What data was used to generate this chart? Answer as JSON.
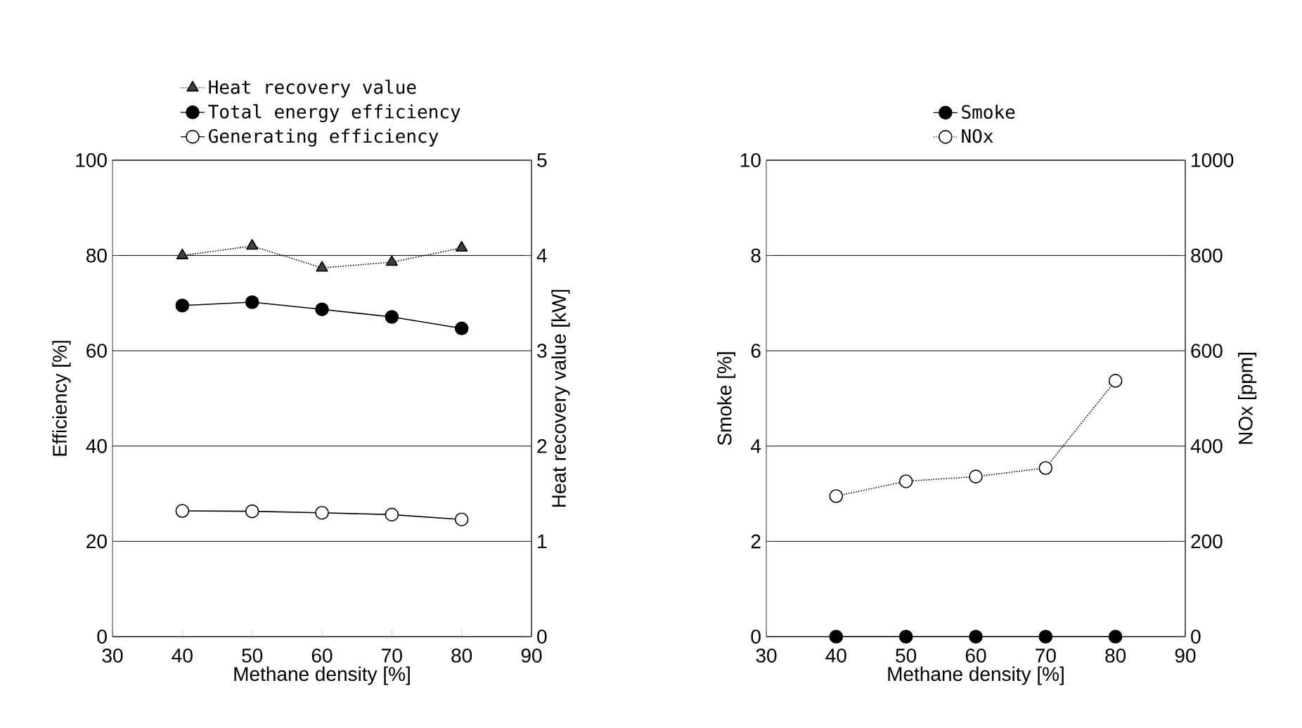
{
  "chart_data": [
    {
      "type": "line",
      "xlabel": "Methane density [%]",
      "ylabel": "Efficiency [%]",
      "y2label": "Heat recovery value [kW]",
      "x": [
        40,
        50,
        60,
        70,
        80
      ],
      "xlim": [
        30,
        90
      ],
      "xticks": [
        30,
        40,
        50,
        60,
        70,
        80,
        90
      ],
      "ylim": [
        0,
        100
      ],
      "yticks": [
        0,
        20,
        40,
        60,
        80,
        100
      ],
      "y2lim": [
        0,
        5
      ],
      "y2ticks": [
        0,
        1,
        2,
        3,
        4,
        5
      ],
      "grid": "y",
      "legend": "top",
      "series": [
        {
          "name": "Heat recovery value",
          "color": "#404040",
          "values": [
            4.0,
            4.1,
            3.87,
            3.93,
            4.08
          ],
          "axis": "y2",
          "marker": "triangle",
          "line_style": "dotted"
        },
        {
          "name": "Total energy efficiency",
          "color": "#000000",
          "values": [
            69.5,
            70.2,
            68.7,
            67.1,
            64.7
          ],
          "marker": "circle",
          "line_style": "solid"
        },
        {
          "name": "Generating efficiency",
          "color": "#ffffff",
          "values": [
            26.4,
            26.3,
            26,
            25.6,
            24.6
          ],
          "marker": "circle",
          "line_style": "solid"
        }
      ]
    },
    {
      "type": "line",
      "xlabel": "Methane density [%]",
      "ylabel": "Smoke [%]",
      "y2label": "NOx [ppm]",
      "x": [
        40,
        50,
        60,
        70,
        80
      ],
      "xlim": [
        30,
        90
      ],
      "xticks": [
        30,
        40,
        50,
        60,
        70,
        80,
        90
      ],
      "ylim": [
        0,
        10
      ],
      "yticks": [
        0,
        2,
        4,
        6,
        8,
        10
      ],
      "y2lim": [
        0,
        1000
      ],
      "y2ticks": [
        0,
        200,
        400,
        600,
        800,
        1000
      ],
      "grid": "y",
      "legend": "top",
      "series": [
        {
          "name": "Smoke",
          "color": "#000000",
          "values": [
            0,
            0,
            0,
            0,
            0
          ],
          "marker": "circle",
          "line_style": "solid"
        },
        {
          "name": "NOx",
          "color": "#ffffff",
          "values": [
            295,
            326,
            336,
            354,
            537
          ],
          "axis": "y2",
          "marker": "circle",
          "line_style": "dotted"
        }
      ]
    }
  ]
}
